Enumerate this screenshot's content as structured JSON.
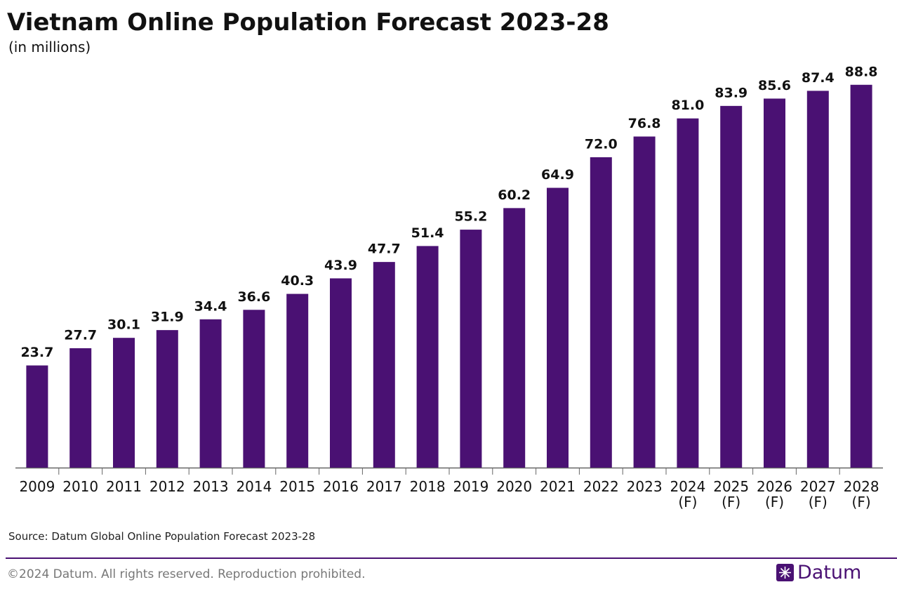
{
  "chart_data": {
    "type": "bar",
    "title": "Vietnam Online Population Forecast 2023-28",
    "subtitle": "(in millions)",
    "categories": [
      "2009",
      "2010",
      "2011",
      "2012",
      "2013",
      "2014",
      "2015",
      "2016",
      "2017",
      "2018",
      "2019",
      "2020",
      "2021",
      "2022",
      "2023",
      "2024 (F)",
      "2025 (F)",
      "2026 (F)",
      "2027 (F)",
      "2028 (F)"
    ],
    "values": [
      23.7,
      27.7,
      30.1,
      31.9,
      34.4,
      36.6,
      40.3,
      43.9,
      47.7,
      51.4,
      55.2,
      60.2,
      64.9,
      72.0,
      76.8,
      81.0,
      83.9,
      85.6,
      87.4,
      88.8
    ],
    "value_labels": [
      "23.7",
      "27.7",
      "30.1",
      "31.9",
      "34.4",
      "36.6",
      "40.3",
      "43.9",
      "47.7",
      "51.4",
      "55.2",
      "60.2",
      "64.9",
      "72.0",
      "76.8",
      "81.0",
      "83.9",
      "85.6",
      "87.4",
      "88.8"
    ],
    "color": "#4a1173",
    "source": "Source: Datum Global Online Population Forecast 2023-28"
  },
  "footer": {
    "copyright": "©2024 Datum. All rights reserved. Reproduction prohibited.",
    "brand": "Datum"
  }
}
